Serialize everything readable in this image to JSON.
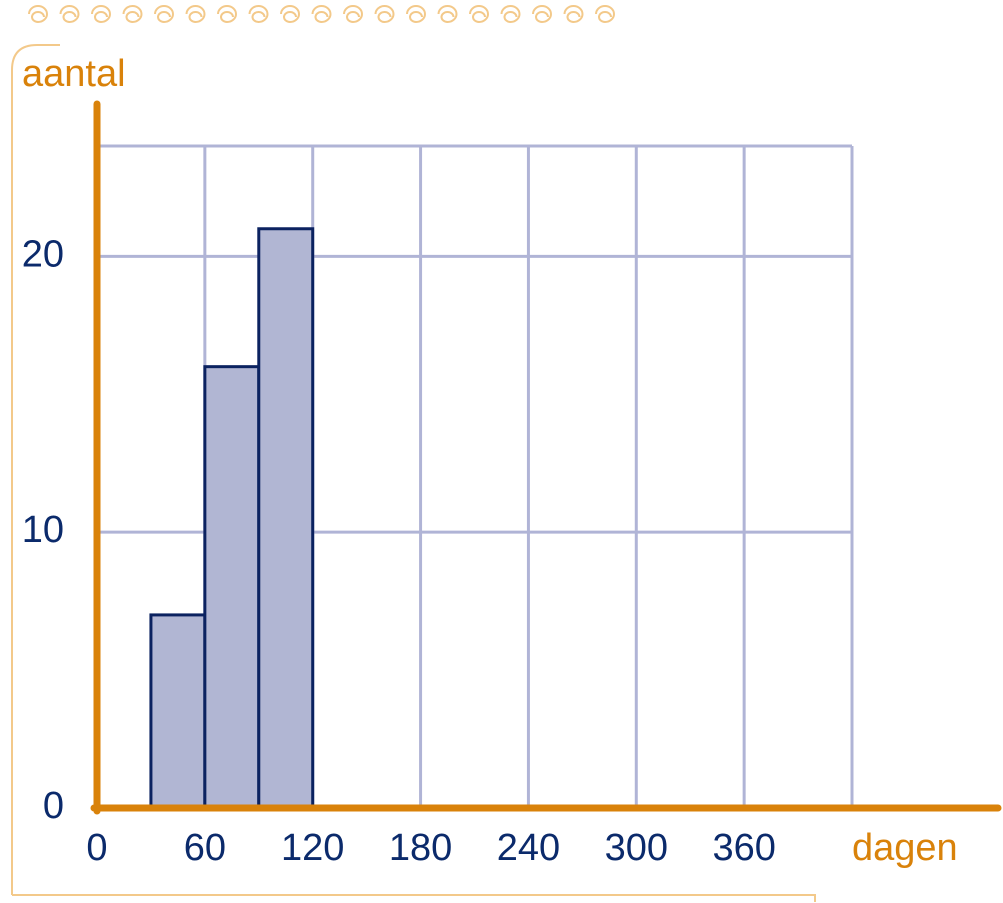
{
  "chart_data": {
    "type": "histogram",
    "x_label": "dagen",
    "y_label": "aantal",
    "bins": [
      30,
      60,
      90,
      120
    ],
    "values": [
      7,
      16,
      21
    ],
    "color": "#b1b6d3",
    "edge_color": "#0b2260",
    "xlim": [
      0,
      420
    ],
    "ylim": [
      0,
      24
    ],
    "xticks": [
      0,
      60,
      120,
      180,
      240,
      300,
      360
    ],
    "yticks": [
      0,
      10,
      20
    ],
    "grid": true
  }
}
